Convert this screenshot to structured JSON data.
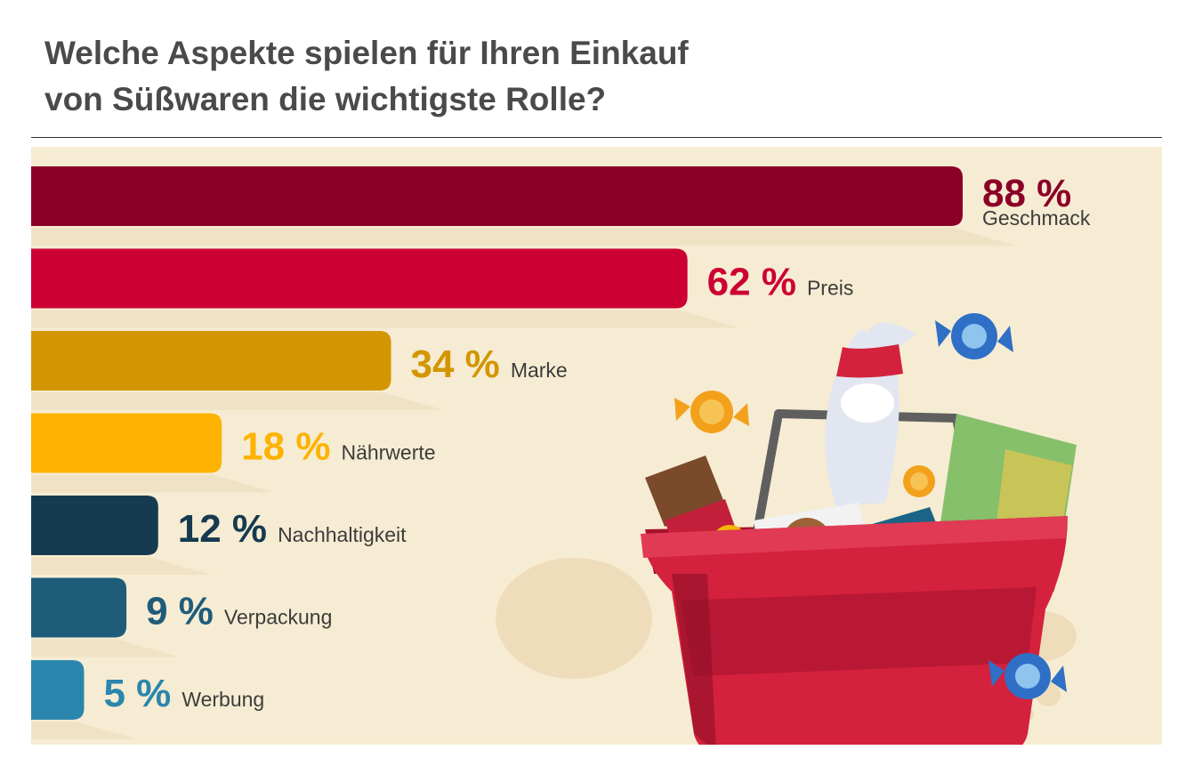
{
  "title": {
    "line1": "Welche Aspekte spielen für Ihren Einkauf",
    "line2": "von Süßwaren die wichtigste Rolle?"
  },
  "chart_data": {
    "type": "bar",
    "orientation": "horizontal",
    "title": "Welche Aspekte spielen für Ihren Einkauf von Süßwaren die wichtigste Rolle?",
    "unit": "%",
    "categories": [
      "Geschmack",
      "Preis",
      "Marke",
      "Nährwerte",
      "Nachhaltigkeit",
      "Verpackung",
      "Werbung"
    ],
    "values": [
      88,
      62,
      34,
      18,
      12,
      9,
      5
    ],
    "value_labels": [
      "88 %",
      "62 %",
      "34 %",
      "18 %",
      "12 %",
      "9 %",
      "5 %"
    ],
    "colors": [
      "#8b0027",
      "#cc0033",
      "#d39600",
      "#fdb300",
      "#163a50",
      "#1f5c7a",
      "#2b86ad"
    ],
    "xlim": [
      0,
      100
    ],
    "grid": false,
    "legend": "none"
  },
  "colors": {
    "panel_background": "#f6ecd3",
    "title_text": "#4a4a49",
    "basket_red": "#d4213d"
  },
  "illustration": {
    "icon": "shopping-basket-with-sweets-icon"
  }
}
